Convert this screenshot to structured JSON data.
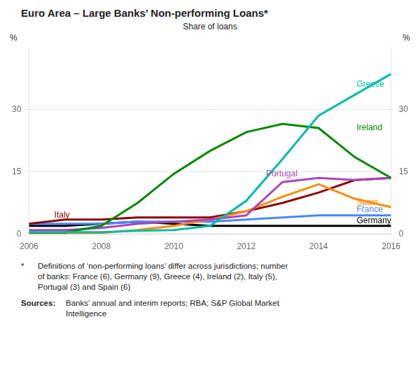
{
  "chart_data": {
    "type": "line",
    "title": "Euro Area – Large Banks’ Non-performing Loans*",
    "subtitle": "Share of loans",
    "ylabel": "%",
    "y2label": "%",
    "x": [
      2006,
      2007,
      2008,
      2009,
      2010,
      2011,
      2012,
      2013,
      2014,
      2015,
      2016
    ],
    "xlim": [
      2006,
      2016
    ],
    "xticks": [
      2006,
      2008,
      2010,
      2012,
      2014,
      2016
    ],
    "ylim": [
      0,
      45
    ],
    "yticks": [
      0,
      15,
      30
    ],
    "y2lim": [
      0,
      45
    ],
    "y2ticks": [
      0,
      15,
      30
    ],
    "grid": "y",
    "series": [
      {
        "name": "Greece",
        "color": "#00BBAA",
        "values": [
          0.5,
          0.5,
          0.5,
          0.8,
          1.0,
          2.0,
          8.0,
          18.0,
          28.5,
          33.5,
          38.5
        ]
      },
      {
        "name": "Ireland",
        "color": "#008800",
        "values": [
          0.4,
          0.4,
          2.0,
          7.5,
          14.5,
          20.0,
          24.5,
          26.5,
          25.5,
          18.5,
          13.5
        ]
      },
      {
        "name": "Portugal",
        "color": "#AA44BB",
        "values": [
          1.0,
          1.0,
          1.5,
          2.5,
          3.0,
          3.5,
          4.5,
          12.5,
          13.5,
          13.0,
          13.5
        ]
      },
      {
        "name": "Spain",
        "color": "#FF8C00",
        "values": [
          0.2,
          0.2,
          0.3,
          1.0,
          2.0,
          3.5,
          5.5,
          9.0,
          12.0,
          8.5,
          6.5
        ]
      },
      {
        "name": "Italy",
        "color": "#8B0000",
        "values": [
          2.5,
          3.5,
          3.5,
          4.0,
          4.0,
          4.0,
          5.5,
          7.5,
          10.0,
          13.0,
          13.5
        ]
      },
      {
        "name": "France",
        "color": "#4488FF",
        "values": [
          2.5,
          2.5,
          2.5,
          3.0,
          3.0,
          3.0,
          3.5,
          4.0,
          4.5,
          4.5,
          4.5
        ]
      },
      {
        "name": "Germany",
        "color": "#000000",
        "values": [
          2.0,
          2.0,
          2.5,
          3.0,
          2.5,
          2.0,
          2.0,
          2.0,
          2.0,
          2.0,
          2.0
        ]
      }
    ],
    "annotations": [
      {
        "text": "Greece",
        "x": 2015.05,
        "y": 36.0,
        "color": "#00BBAA"
      },
      {
        "text": "Ireland",
        "x": 2015.05,
        "y": 25.5,
        "color": "#008800"
      },
      {
        "text": "Portugal",
        "x": 2012.55,
        "y": 14.5,
        "color": "#AA44BB"
      },
      {
        "text": "Spain",
        "x": 2015.05,
        "y": 7.5,
        "color": "#FF8C00"
      },
      {
        "text": "Italy",
        "x": 2006.7,
        "y": 4.5,
        "color": "#8B0000"
      },
      {
        "text": "France",
        "x": 2015.05,
        "y": 5.8,
        "color": "#4488FF"
      },
      {
        "text": "Germany",
        "x": 2015.05,
        "y": 3.2,
        "color": "#000000"
      }
    ],
    "footnote_marker": "*",
    "footnote": "Definitions of ‘non-performing loans’ differ across jurisdictions; number\nof banks: France (6), Germany (9), Greece (4), Ireland (2), Italy (5),\nPortugal (3) and Spain (6)",
    "sources_label": "Sources:",
    "sources": " Banks’ annual and interim reports; RBA; S&P Global Market\nIntelligence"
  }
}
